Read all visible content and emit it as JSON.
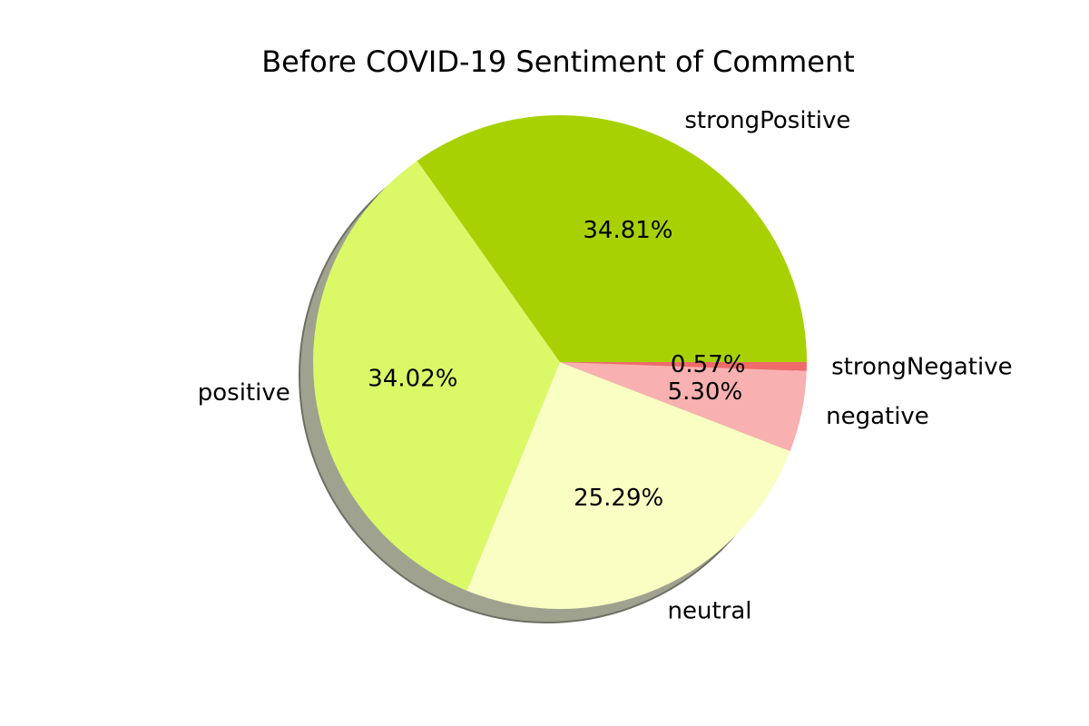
{
  "chart_data": {
    "type": "pie",
    "title": "Before COVID-19 Sentiment of Comment",
    "slices": [
      {
        "label": "strongPositive",
        "value": 34.81,
        "pct_text": "34.81%",
        "color": "#a8d103"
      },
      {
        "label": "positive",
        "value": 34.02,
        "pct_text": "34.02%",
        "color": "#dbf966"
      },
      {
        "label": "neutral",
        "value": 25.29,
        "pct_text": "25.29%",
        "color": "#f9ffc2"
      },
      {
        "label": "negative",
        "value": 5.3,
        "pct_text": "5.30%",
        "color": "#f9b0b0"
      },
      {
        "label": "strongNegative",
        "value": 0.57,
        "pct_text": "0.57%",
        "color": "#f06a6a"
      }
    ],
    "start_angle_deg": 0,
    "direction": "counterclockwise",
    "shadow": true,
    "shadow_color": "#a0a290"
  }
}
